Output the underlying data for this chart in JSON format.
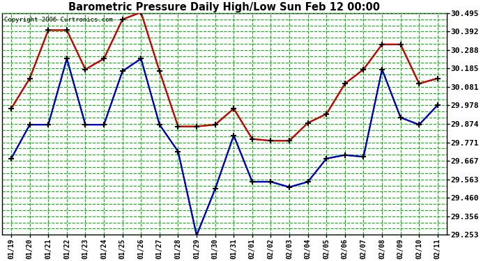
{
  "title": "Barometric Pressure Daily High/Low Sun Feb 12 00:00",
  "copyright": "Copyright 2006 Curtronics.com",
  "dates": [
    "01/19",
    "01/20",
    "01/21",
    "01/22",
    "01/23",
    "01/24",
    "01/25",
    "01/26",
    "01/27",
    "01/28",
    "01/29",
    "01/30",
    "01/31",
    "02/01",
    "02/02",
    "02/03",
    "02/04",
    "02/05",
    "02/06",
    "02/07",
    "02/08",
    "02/09",
    "02/10",
    "02/11"
  ],
  "high": [
    29.96,
    30.13,
    30.4,
    30.4,
    30.18,
    30.24,
    30.46,
    30.5,
    30.17,
    29.86,
    29.86,
    29.87,
    29.96,
    29.79,
    29.78,
    29.78,
    29.88,
    29.93,
    30.1,
    30.18,
    30.32,
    30.32,
    30.1,
    30.13
  ],
  "low": [
    29.68,
    29.87,
    29.87,
    30.24,
    29.87,
    29.87,
    30.17,
    30.24,
    29.87,
    29.72,
    29.25,
    29.51,
    29.81,
    29.55,
    29.55,
    29.52,
    29.55,
    29.68,
    29.7,
    29.69,
    30.18,
    29.91,
    29.87,
    29.98
  ],
  "high_color": "#cc0000",
  "low_color": "#0000cc",
  "bg_color": "#ffffff",
  "plot_bg_color": "#ffffff",
  "grid_color": "#00bb00",
  "title_color": "#000000",
  "ylim_min": 29.253,
  "ylim_max": 30.495,
  "yticks": [
    29.253,
    29.356,
    29.46,
    29.563,
    29.667,
    29.771,
    29.874,
    29.978,
    30.081,
    30.185,
    30.288,
    30.392,
    30.495
  ]
}
